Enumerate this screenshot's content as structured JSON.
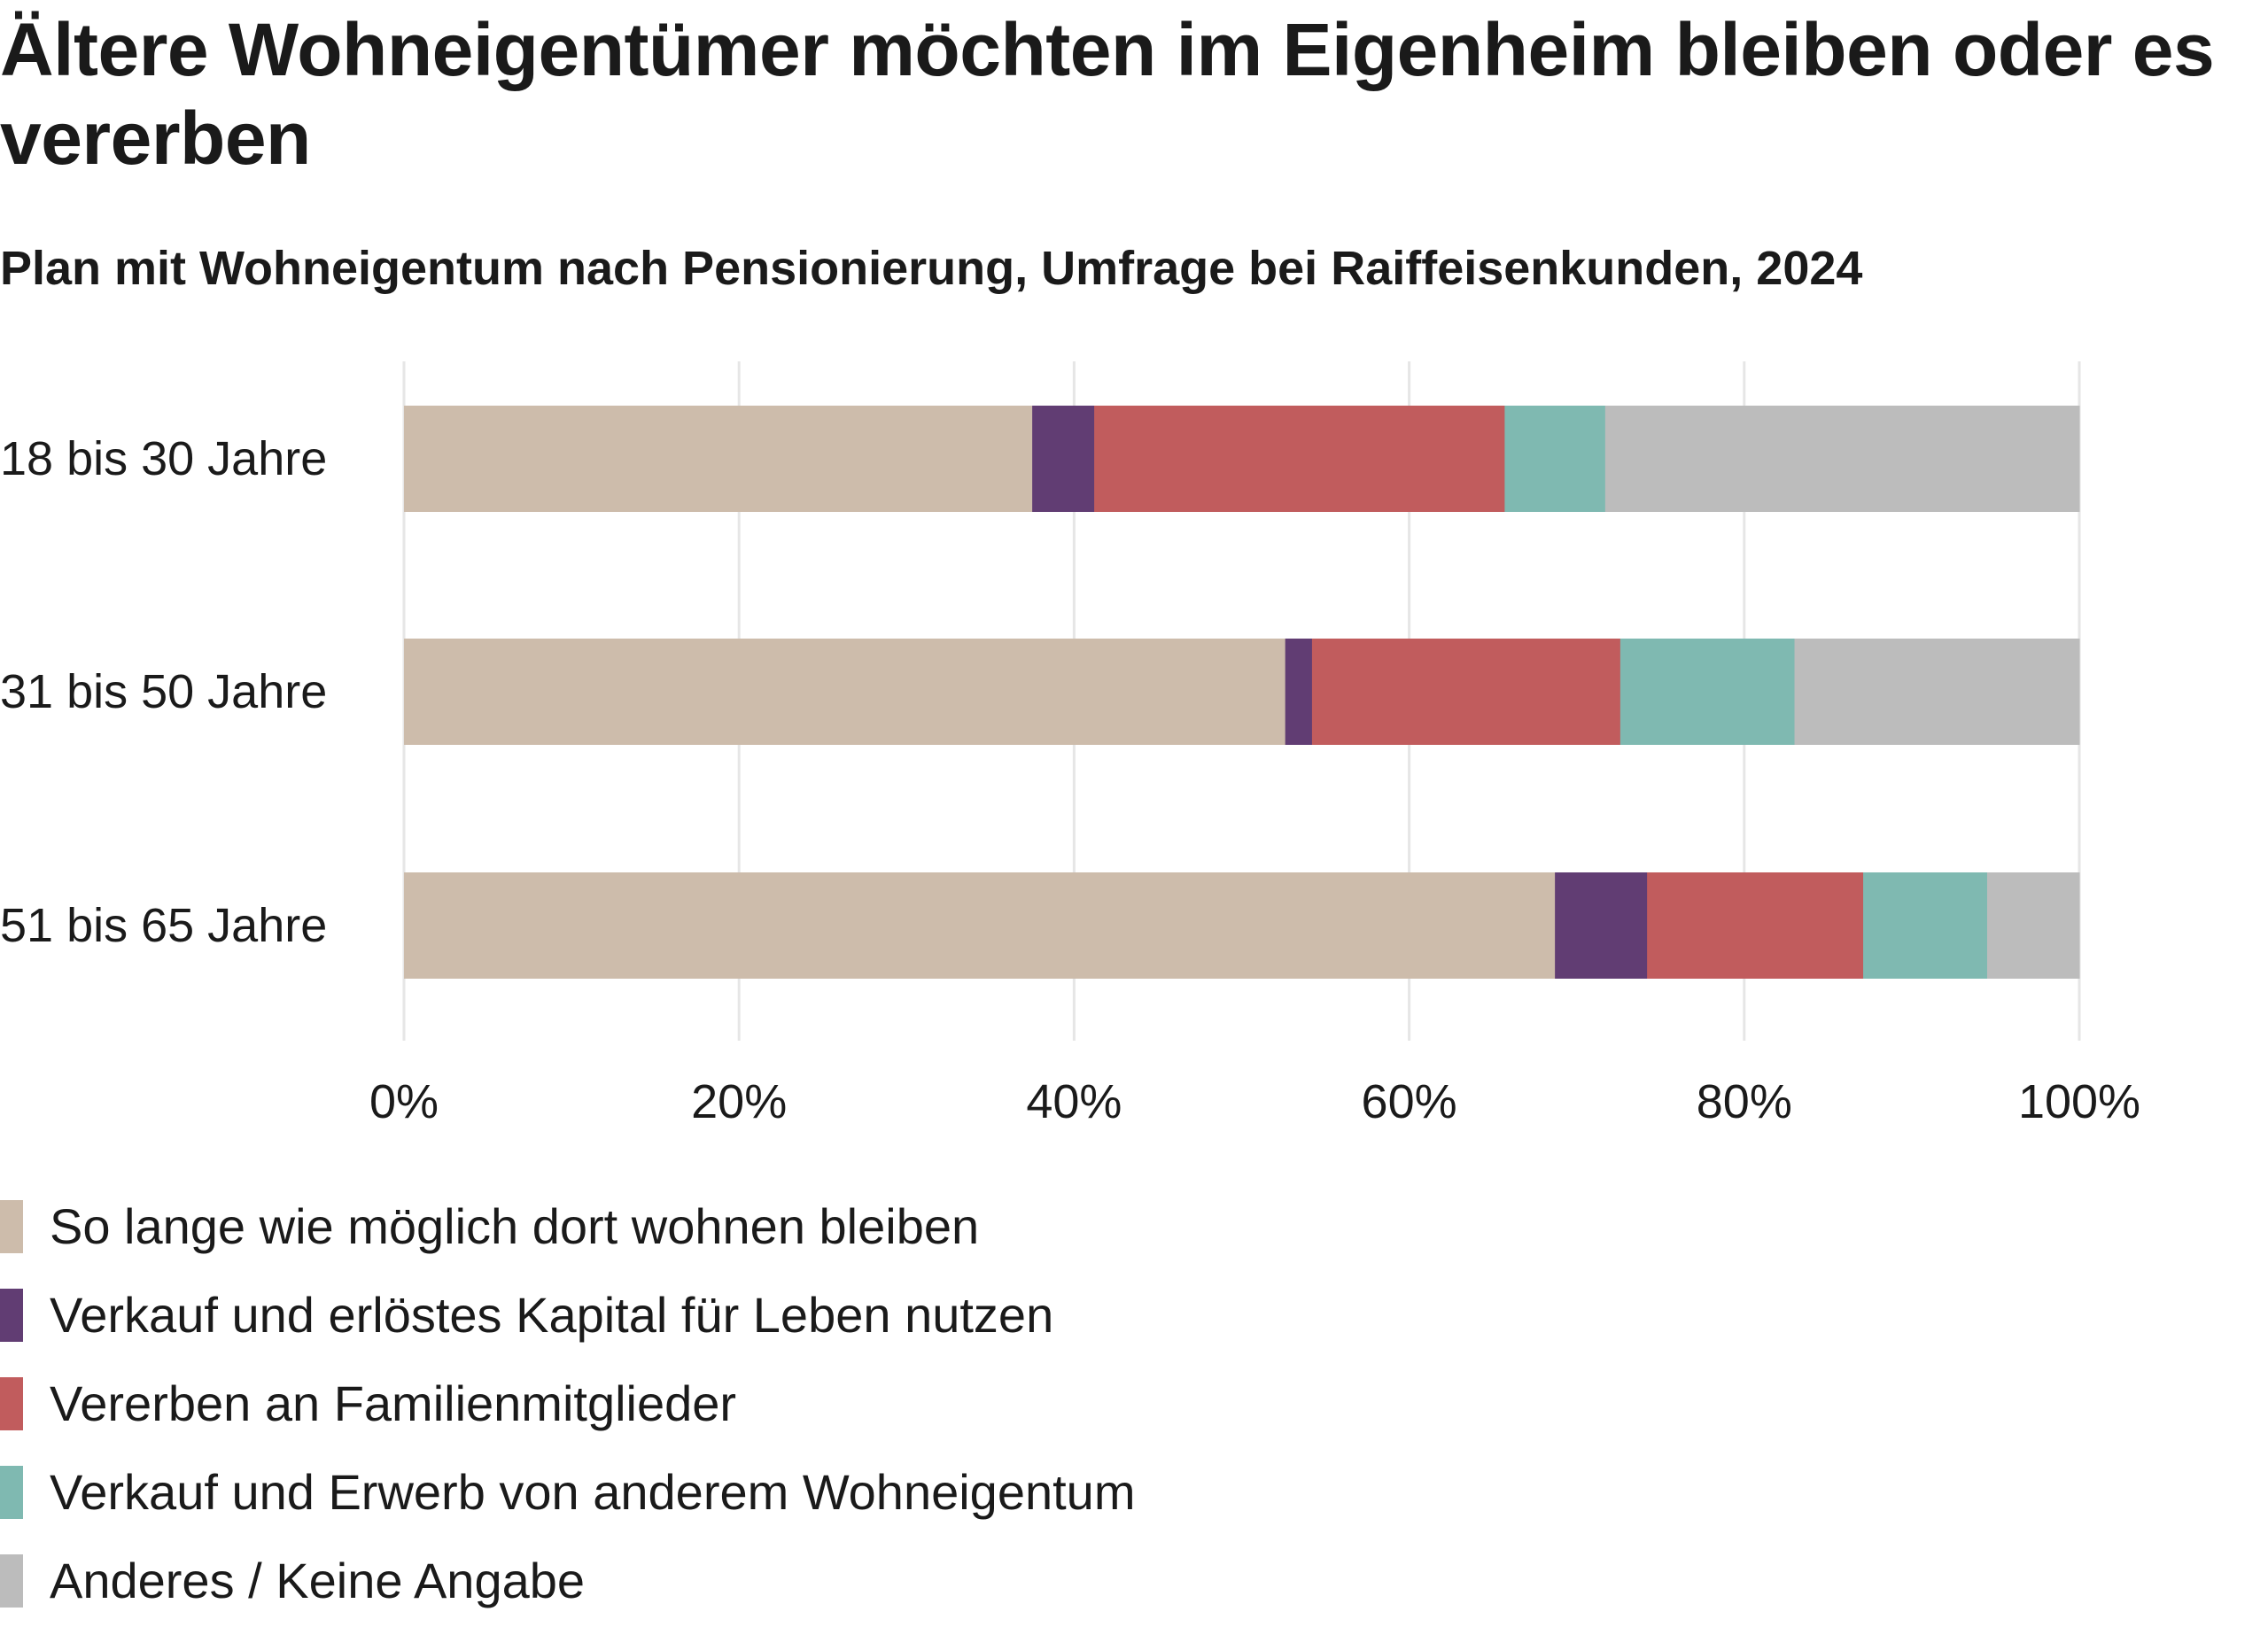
{
  "title": "Ältere Wohneigentümer möchten im Eigenheim bleiben oder es vererben",
  "subtitle": "Plan mit Wohneigentum nach Pensionierung, Umfrage bei Raiffeisenkunden, 2024",
  "chart_data": {
    "type": "bar",
    "orientation": "horizontal",
    "stacked": true,
    "title": "Ältere Wohneigentümer möchten im Eigenheim bleiben oder es vererben",
    "subtitle": "Plan mit Wohneigentum nach Pensionierung, Umfrage bei Raiffeisenkunden, 2024",
    "xlabel": "",
    "ylabel": "",
    "xlim": [
      0,
      100
    ],
    "x_ticks": [
      0,
      20,
      40,
      60,
      80,
      100
    ],
    "x_tick_labels": [
      "0%",
      "20%",
      "40%",
      "60%",
      "80%",
      "100%"
    ],
    "grid": true,
    "legend_position": "bottom-left",
    "categories": [
      "18 bis 30 Jahre",
      "31 bis 50 Jahre",
      "51 bis 65 Jahre"
    ],
    "series": [
      {
        "name": "So lange wie möglich dort wohnen bleiben",
        "color": "#cdbcab",
        "values": [
          37.5,
          52.6,
          68.7
        ]
      },
      {
        "name": "Verkauf und erlöstes Kapital für Leben nutzen",
        "color": "#613d73",
        "values": [
          3.7,
          1.6,
          5.5
        ]
      },
      {
        "name": "Vererben an Familienmitglieder",
        "color": "#c15c5d",
        "values": [
          24.5,
          18.4,
          12.9
        ]
      },
      {
        "name": "Verkauf und Erwerb von anderem Wohneigentum",
        "color": "#7fb9b1",
        "values": [
          6.0,
          10.4,
          7.4
        ]
      },
      {
        "name": "Anderes / Keine Angabe",
        "color": "#bcbcbc",
        "values": [
          28.3,
          17.0,
          5.5
        ]
      }
    ]
  },
  "colors": {
    "gridline": "#e6e6e6",
    "text": "#1a1a1a"
  }
}
